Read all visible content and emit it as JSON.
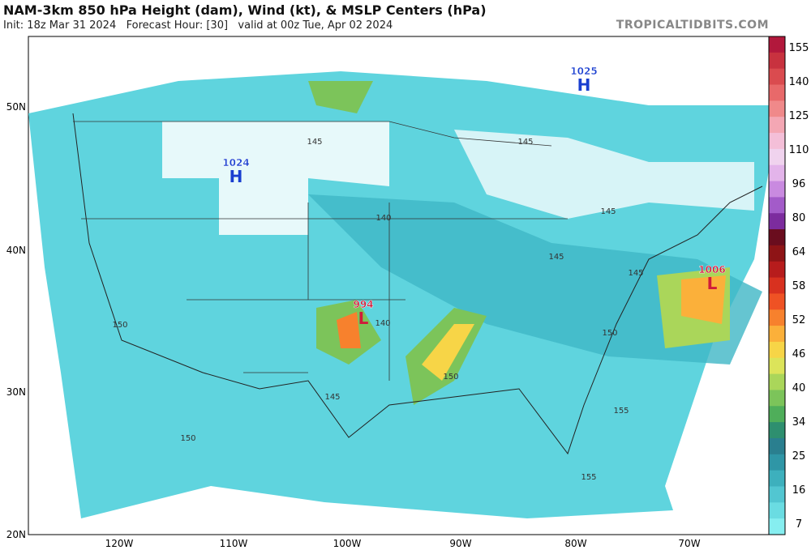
{
  "header": {
    "title": "NAM-3km 850 hPa Height (dam), Wind (kt), & MSLP Centers (hPa)",
    "subtitle": "Init: 18z Mar 31 2024   Forecast Hour: [30]   valid at 00z Tue, Apr 02 2024",
    "brand": "TROPICALTIDBITS.COM"
  },
  "map": {
    "lat_labels": [
      "50N",
      "40N",
      "30N",
      "20N"
    ],
    "lon_labels": [
      "120W",
      "110W",
      "100W",
      "90W",
      "80W",
      "70W"
    ],
    "pressure_centers": [
      {
        "value": "1024",
        "letter": "H"
      },
      {
        "value": "1025",
        "letter": "H"
      },
      {
        "value": "994",
        "letter": "L"
      },
      {
        "value": "1006",
        "letter": "L"
      }
    ],
    "contour_labels": [
      "145",
      "140",
      "145",
      "145",
      "140",
      "145",
      "150",
      "150",
      "150",
      "145",
      "155",
      "155",
      "150",
      "145"
    ]
  },
  "colorbar": {
    "labels": [
      "155",
      "140",
      "125",
      "110",
      "96",
      "80",
      "64",
      "58",
      "52",
      "46",
      "40",
      "34",
      "25",
      "16",
      "7"
    ],
    "colors": [
      "#b2183c",
      "#c8323f",
      "#da4b4f",
      "#e8696a",
      "#f0898a",
      "#f4a7b4",
      "#f4bfd8",
      "#f0d3ee",
      "#e3b4ea",
      "#c98ae0",
      "#a35bc9",
      "#7c2c9e",
      "#6a0d1e",
      "#8e1416",
      "#b71c1c",
      "#d8311f",
      "#ef5224",
      "#f7812d",
      "#fbb03a",
      "#f7d547",
      "#dce45a",
      "#aad65a",
      "#7cc45a",
      "#4fae5a",
      "#2e8f6f",
      "#2a7f8f",
      "#2f96a6",
      "#3db0bd",
      "#52c6d1",
      "#6adce2",
      "#86eef0"
    ]
  }
}
